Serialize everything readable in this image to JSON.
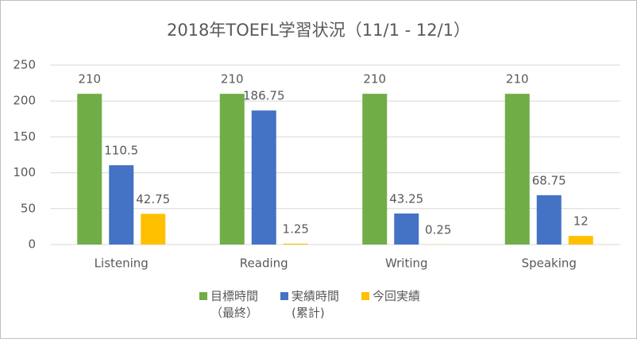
{
  "chart_data": {
    "type": "bar",
    "title": "2018年TOEFL学習状況（11/1 - 12/1）",
    "categories": [
      "Listening",
      "Reading",
      "Writing",
      "Speaking"
    ],
    "series": [
      {
        "name": "目標時間（最終）",
        "color": "#70ad47",
        "values": [
          210,
          210,
          210,
          210
        ]
      },
      {
        "name": "実績時間(累計)",
        "color": "#4472c4",
        "values": [
          110.5,
          186.75,
          43.25,
          68.75
        ]
      },
      {
        "name": "今回実績",
        "color": "#ffc000",
        "values": [
          42.75,
          1.25,
          0.25,
          12
        ]
      }
    ],
    "ylim": [
      0,
      250
    ],
    "yticks": [
      0,
      50,
      100,
      150,
      200,
      250
    ],
    "grid": true,
    "legend": "bottom"
  }
}
